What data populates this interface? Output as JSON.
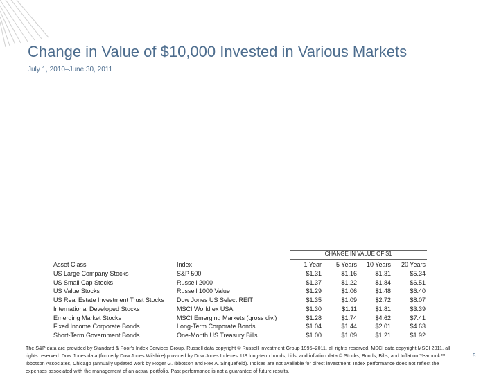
{
  "header": {
    "title": "Change in Value of $10,000 Invested in Various Markets",
    "subtitle": "July 1, 2010–June 30, 2011"
  },
  "table": {
    "group_header": "CHANGE IN VALUE OF $1",
    "columns": [
      "Asset Class",
      "Index",
      "1 Year",
      "5 Years",
      "10 Years",
      "20 Years"
    ],
    "rows": [
      [
        "US Large Company Stocks",
        "S&P 500",
        "$1.31",
        "$1.16",
        "$1.31",
        "$5.34"
      ],
      [
        "US Small Cap Stocks",
        "Russell 2000",
        "$1.37",
        "$1.22",
        "$1.84",
        "$6.51"
      ],
      [
        "US Value Stocks",
        "Russell 1000 Value",
        "$1.29",
        "$1.06",
        "$1.48",
        "$6.40"
      ],
      [
        "US Real Estate Investment Trust Stocks",
        "Dow Jones US Select REIT",
        "$1.35",
        "$1.09",
        "$2.72",
        "$8.07"
      ],
      [
        "International Developed Stocks",
        "MSCI World ex USA",
        "$1.30",
        "$1.11",
        "$1.81",
        "$3.39"
      ],
      [
        "Emerging Market Stocks",
        "MSCI Emerging Markets (gross div.)",
        "$1.28",
        "$1.74",
        "$4.62",
        "$7.41"
      ],
      [
        "Fixed Income Corporate Bonds",
        "Long-Term Corporate Bonds",
        "$1.04",
        "$1.44",
        "$2.01",
        "$4.63"
      ],
      [
        "Short-Term Government Bonds",
        "One-Month US Treasury Bills",
        "$1.00",
        "$1.09",
        "$1.21",
        "$1.92"
      ]
    ]
  },
  "footnote": "The S&P data are provided by Standard & Poor's Index Services Group. Russell data copyright © Russell Investment Group 1995–2011, all rights reserved. MSCI data copyright MSCI 2011, all rights reserved. Dow Jones data (formerly Dow Jones Wilshire) provided by Dow Jones Indexes. US long-term bonds, bills, and inflation data © Stocks, Bonds, Bills, and Inflation Yearbook™, Ibbotson Associates, Chicago (annually updated work by Roger G. Ibbotson and Rex A. Sinquefield). Indices are not available for direct investment. Index performance does not reflect the expenses associated with the management of an actual portfolio. Past performance is not a guarantee of future results.",
  "page_number": "5"
}
